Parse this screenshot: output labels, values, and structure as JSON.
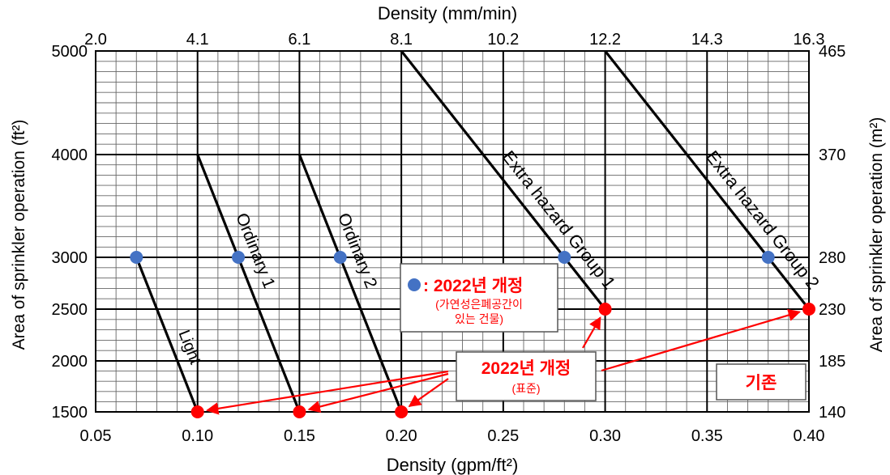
{
  "chart_data": {
    "type": "line",
    "x_axis_bottom": {
      "label": "Density (gpm/ft²)",
      "ticks": [
        0.05,
        0.1,
        0.15,
        0.2,
        0.25,
        0.3,
        0.35,
        0.4
      ],
      "tick_labels": [
        "0.05",
        "0.10",
        "0.15",
        "0.20",
        "0.25",
        "0.30",
        "0.35",
        "0.40"
      ],
      "range": [
        0.05,
        0.4
      ]
    },
    "x_axis_top": {
      "label": "Density (mm/min)",
      "tick_labels": [
        "2.0",
        "4.1",
        "6.1",
        "8.1",
        "10.2",
        "12.2",
        "14.3",
        "16.3"
      ]
    },
    "y_axis_left": {
      "label": "Area of sprinkler operation (ft²)",
      "ticks": [
        1500,
        2000,
        2500,
        3000,
        4000,
        5000
      ],
      "tick_labels": [
        "1500",
        "2000",
        "2500",
        "3000",
        "4000",
        "5000"
      ],
      "range": [
        1500,
        5000
      ]
    },
    "y_axis_right": {
      "label": "Area of sprinkler operation (m²)",
      "tick_labels": [
        "140",
        "185",
        "230",
        "280",
        "370",
        "465"
      ]
    },
    "grid": true,
    "series": [
      {
        "name": "Light",
        "x": [
          0.07,
          0.1
        ],
        "y": [
          3000,
          1500
        ]
      },
      {
        "name": "Ordinary 1",
        "x": [
          0.1,
          0.15
        ],
        "y": [
          4000,
          1500
        ]
      },
      {
        "name": "Ordinary 2",
        "x": [
          0.15,
          0.2
        ],
        "y": [
          4000,
          1500
        ]
      },
      {
        "name": "Extra hazard Group 1",
        "x": [
          0.2,
          0.3
        ],
        "y": [
          5000,
          2500
        ]
      },
      {
        "name": "Extra hazard Group 2",
        "x": [
          0.3,
          0.4
        ],
        "y": [
          5000,
          2500
        ]
      }
    ],
    "blue_points": [
      {
        "x": 0.07,
        "y": 3000
      },
      {
        "x": 0.12,
        "y": 3000
      },
      {
        "x": 0.17,
        "y": 3000
      },
      {
        "x": 0.28,
        "y": 3000
      },
      {
        "x": 0.38,
        "y": 3000
      }
    ],
    "red_points": [
      {
        "x": 0.1,
        "y": 1500
      },
      {
        "x": 0.15,
        "y": 1500
      },
      {
        "x": 0.2,
        "y": 1500
      },
      {
        "x": 0.3,
        "y": 2500
      },
      {
        "x": 0.4,
        "y": 2500
      }
    ],
    "annotations": {
      "blue_title": ": 2022년 개정",
      "blue_sub1": "(가연성은폐공간이",
      "blue_sub2": "있는 건물)",
      "red_title": "2022년 개정",
      "red_sub": "(표준)",
      "existing": "기존"
    },
    "colors": {
      "blue": "#4472c4",
      "red": "#ff0000",
      "annotation_text": "#ff0000"
    }
  }
}
